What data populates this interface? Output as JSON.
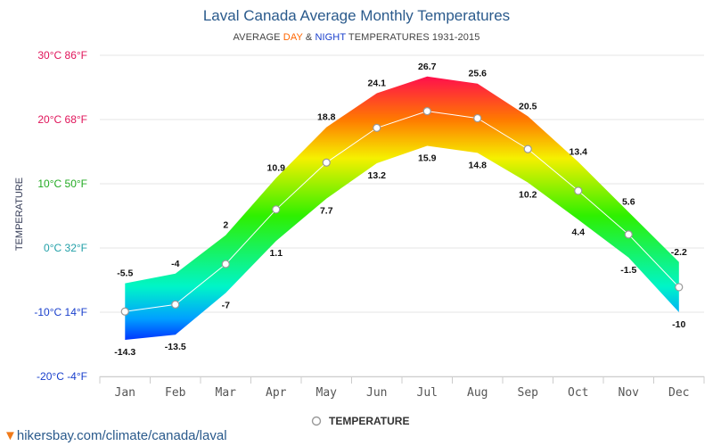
{
  "header": {
    "title": "Laval Canada Average Monthly Temperatures",
    "subtitle_prefix": "AVERAGE ",
    "subtitle_day": "DAY",
    "subtitle_amp": " & ",
    "subtitle_night": "NIGHT",
    "subtitle_suffix": " TEMPERATURES 1931-2015"
  },
  "source_text": "hikersbay.com/climate/canada/laval",
  "chart_data": {
    "type": "area",
    "title": "Laval Canada Average Monthly Temperatures",
    "subtitle": "AVERAGE DAY & NIGHT TEMPERATURES 1931-2015",
    "ylabel": "TEMPERATURE",
    "xlabel": "",
    "ylim": [
      -20,
      30
    ],
    "yticks": [
      {
        "value": 30,
        "label": "30°C 86°F",
        "color": "#e0145a"
      },
      {
        "value": 20,
        "label": "20°C 68°F",
        "color": "#e0145a"
      },
      {
        "value": 10,
        "label": "10°C 50°F",
        "color": "#22aa22"
      },
      {
        "value": 0,
        "label": "0°C 32°F",
        "color": "#22a0a8"
      },
      {
        "value": -10,
        "label": "-10°C 14°F",
        "color": "#1a40cc"
      },
      {
        "value": -20,
        "label": "-20°C -4°F",
        "color": "#1a40cc"
      }
    ],
    "categories": [
      "Jan",
      "Feb",
      "Mar",
      "Apr",
      "May",
      "Jun",
      "Jul",
      "Aug",
      "Sep",
      "Oct",
      "Nov",
      "Dec"
    ],
    "series": [
      {
        "name": "",
        "role": "day",
        "values": [
          -5.5,
          -4,
          2,
          10.9,
          18.8,
          24.1,
          26.7,
          25.6,
          20.5,
          13.4,
          5.6,
          -2.2
        ]
      },
      {
        "name": "",
        "role": "night",
        "values": [
          -14.3,
          -13.5,
          -7,
          1.1,
          7.7,
          13.2,
          15.9,
          14.8,
          10.2,
          4.4,
          -1.5,
          -10
        ]
      },
      {
        "name": "TEMPERATURE",
        "role": "average",
        "values": [
          -9.9,
          -8.8,
          -2.5,
          6,
          13.3,
          18.7,
          21.3,
          20.2,
          15.4,
          8.9,
          2.1,
          -6.1
        ]
      }
    ],
    "grid": true,
    "legend": "bottom-center",
    "colors": {
      "hot": "#ff0a50",
      "warm": "#ff7a00",
      "mild": "#f5f000",
      "green": "#2ef000",
      "teal": "#00f5c8",
      "cold": "#00a0ff",
      "freezing": "#0020ff",
      "average_line": "#ffffff",
      "grid": "#e6e6e6"
    }
  }
}
